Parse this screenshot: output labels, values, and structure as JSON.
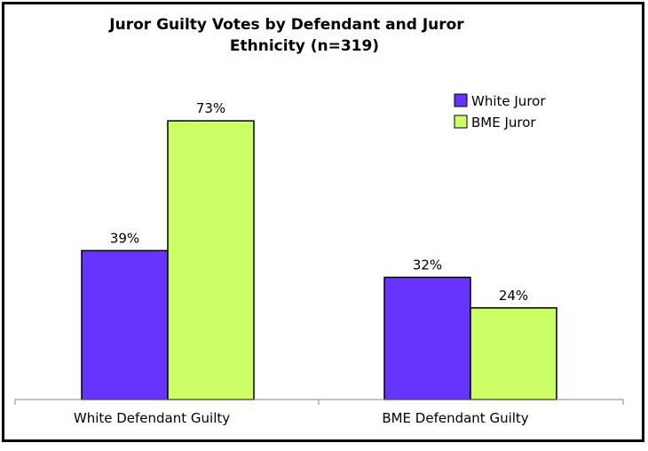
{
  "chart_data": {
    "type": "bar",
    "title_line1": "Juror Guilty Votes by Defendant and Juror",
    "title_line2": "Ethnicity (n=319)",
    "categories": [
      "White Defendant Guilty",
      "BME Defendant Guilty"
    ],
    "series": [
      {
        "name": "White Juror",
        "values": [
          39,
          32
        ],
        "labels": [
          "39%",
          "32%"
        ],
        "color": "#6633FF"
      },
      {
        "name": "BME Juror",
        "values": [
          73,
          24
        ],
        "labels": [
          "73%",
          "24%"
        ],
        "color": "#CCFF66"
      }
    ],
    "ylim": [
      0,
      100
    ],
    "xlabel": "",
    "ylabel": "",
    "legend": "top-right",
    "grid": false
  }
}
